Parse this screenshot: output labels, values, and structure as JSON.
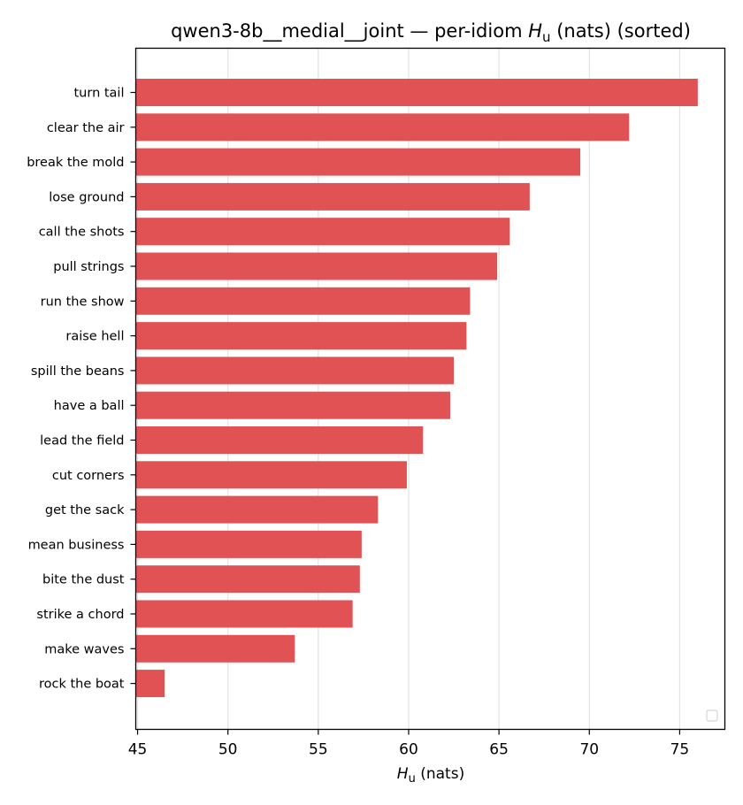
{
  "chart_data": {
    "type": "bar",
    "orientation": "horizontal",
    "title_prefix": "qwen3-8b__medial__joint — per-idiom ",
    "title_symbol": "H",
    "title_subscript": "u",
    "title_suffix": " (nats) (sorted)",
    "xlabel_symbol": "H",
    "xlabel_subscript": "u",
    "xlabel_suffix": " (nats)",
    "ylabel": "",
    "categories": [
      "turn tail",
      "clear the air",
      "break the mold",
      "lose ground",
      "call the shots",
      "pull strings",
      "run the show",
      "raise hell",
      "spill the beans",
      "have a ball",
      "lead the field",
      "cut corners",
      "get the sack",
      "mean business",
      "bite the dust",
      "strike a chord",
      "make waves",
      "rock the boat"
    ],
    "values": [
      76.0,
      72.2,
      69.5,
      66.7,
      65.6,
      64.9,
      63.4,
      63.2,
      62.5,
      62.3,
      60.8,
      59.9,
      58.3,
      57.4,
      57.3,
      56.9,
      53.7,
      46.5
    ],
    "xlim": [
      44.9,
      77.5
    ],
    "xticks": [
      45,
      50,
      55,
      60,
      65,
      70,
      75
    ],
    "grid": "vertical",
    "bar_color": "#e05254",
    "legend": "bottom-right (empty)"
  }
}
